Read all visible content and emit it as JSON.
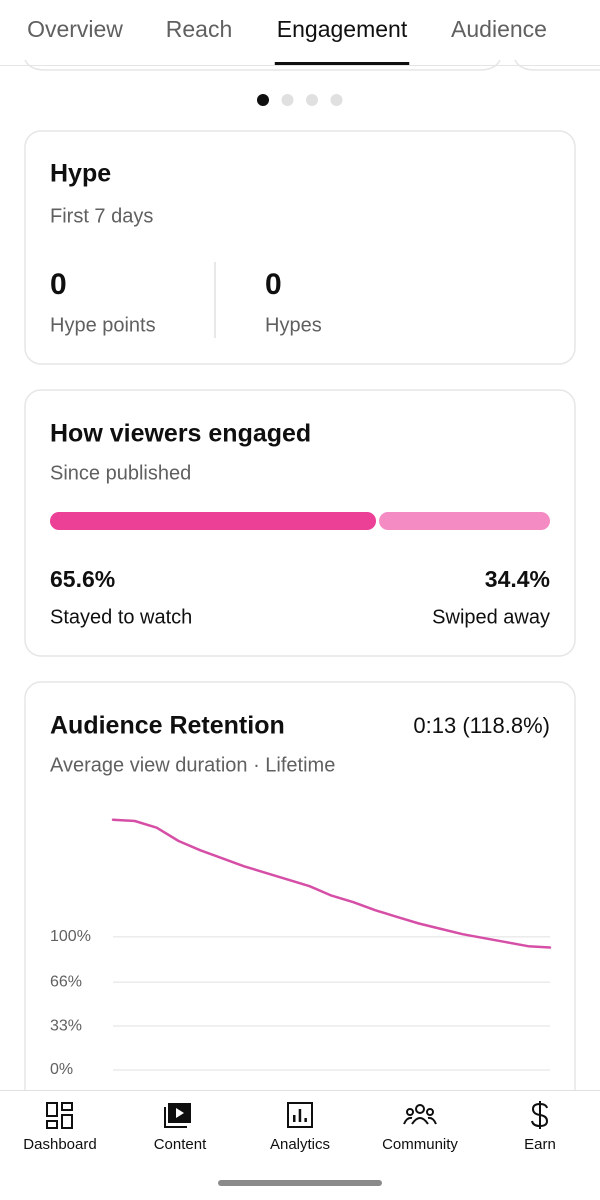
{
  "tabs": {
    "items": [
      "Overview",
      "Reach",
      "Engagement",
      "Audience"
    ],
    "active": 2
  },
  "carousel": {
    "pages": 4,
    "active": 0
  },
  "hype": {
    "title": "Hype",
    "subtitle": "First 7 days",
    "stats": [
      {
        "value": 0,
        "label": "Hype points"
      },
      {
        "value": 0,
        "label": "Hypes"
      }
    ]
  },
  "engagement": {
    "title": "How viewers engaged",
    "subtitle": "Since published",
    "segments": [
      {
        "name": "Stayed to watch",
        "value": 65.6,
        "value_label": "65.6%",
        "color": "#ec3f96"
      },
      {
        "name": "Swiped away",
        "value": 34.4,
        "value_label": "34.4%",
        "color": "#f48bc3"
      }
    ]
  },
  "retention": {
    "title": "Audience Retention",
    "summary": "0:13 (118.8%)",
    "subtitle": "Average view duration · Lifetime",
    "chart_data": {
      "type": "line",
      "values": [
        188,
        187,
        182,
        172,
        165,
        159,
        153,
        148,
        143,
        138,
        131,
        126,
        120,
        115,
        110,
        106,
        102,
        99,
        96,
        93,
        92
      ],
      "color": "#d64fa6",
      "ylim": [
        0,
        190
      ],
      "yticks": [
        {
          "value": 100,
          "label": "100%"
        },
        {
          "value": 66,
          "label": "66%"
        },
        {
          "value": 33,
          "label": "33%"
        },
        {
          "value": 0,
          "label": "0%"
        }
      ],
      "grid": true
    }
  },
  "nav": [
    "Dashboard",
    "Content",
    "Analytics",
    "Community",
    "Earn"
  ]
}
